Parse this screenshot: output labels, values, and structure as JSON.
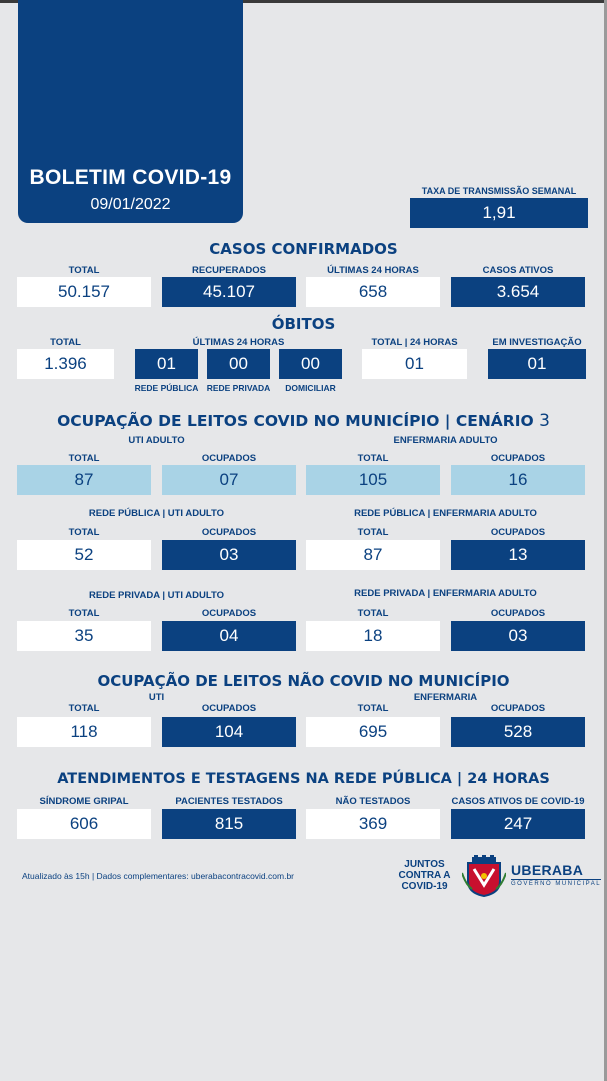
{
  "header": {
    "title": "BOLETIM COVID-19",
    "date": "09/01/2022"
  },
  "taxa": {
    "label": "TAXA DE TRANSMISSÃO SEMANAL",
    "value": "1,91"
  },
  "casos": {
    "title": "CASOS CONFIRMADOS",
    "items": [
      {
        "label": "TOTAL",
        "value": "50.157"
      },
      {
        "label": "RECUPERADOS",
        "value": "45.107"
      },
      {
        "label": "ÚLTIMAS 24 HORAS",
        "value": "658"
      },
      {
        "label": "CASOS ATIVOS",
        "value": "3.654"
      }
    ]
  },
  "obitos": {
    "title": "ÓBITOS",
    "total_label": "TOTAL",
    "total_value": "1.396",
    "ult24_label": "ÚLTIMAS 24 HORAS",
    "ult24": [
      {
        "label": "REDE PÚBLICA",
        "value": "01"
      },
      {
        "label": "REDE PRIVADA",
        "value": "00"
      },
      {
        "label": "DOMICILIAR",
        "value": "00"
      }
    ],
    "total24_label": "TOTAL | 24 HORAS",
    "total24_value": "01",
    "invest_label": "EM INVESTIGAÇÃO",
    "invest_value": "01"
  },
  "leitos_covid": {
    "title": "OCUPAÇÃO DE LEITOS COVID NO MUNICÍPIO | CENÁRIO",
    "cenario": "3",
    "total_label": "TOTAL",
    "ocupados_label": "OCUPADOS",
    "uti_adulto": {
      "label": "UTI ADULTO",
      "total": "87",
      "ocupados": "07"
    },
    "enf_adulto": {
      "label": "ENFERMARIA ADULTO",
      "total": "105",
      "ocupados": "16"
    },
    "pub_uti": {
      "label": "REDE PÚBLICA | UTI ADULTO",
      "total": "52",
      "ocupados": "03"
    },
    "pub_enf": {
      "label": "REDE PÚBLICA | ENFERMARIA ADULTO",
      "total": "87",
      "ocupados": "13"
    },
    "priv_uti": {
      "label": "REDE PRIVADA | UTI ADULTO",
      "total": "35",
      "ocupados": "04"
    },
    "priv_enf": {
      "label": "REDE PRIVADA | ENFERMARIA ADULTO",
      "total": "18",
      "ocupados": "03"
    }
  },
  "leitos_nao_covid": {
    "title": "OCUPAÇÃO DE LEITOS NÃO COVID NO MUNICÍPIO",
    "uti": {
      "label": "UTI",
      "total": "118",
      "ocupados": "104"
    },
    "enf": {
      "label": "ENFERMARIA",
      "total": "695",
      "ocupados": "528"
    }
  },
  "atendimentos": {
    "title": "ATENDIMENTOS E TESTAGENS NA REDE PÚBLICA | 24 HORAS",
    "items": [
      {
        "label": "SÍNDROME GRIPAL",
        "value": "606"
      },
      {
        "label": "PACIENTES TESTADOS",
        "value": "815"
      },
      {
        "label": "NÃO TESTADOS",
        "value": "369"
      },
      {
        "label": "CASOS ATIVOS DE COVID-19",
        "value": "247"
      }
    ]
  },
  "footer": {
    "text": "Atualizado às 15h | Dados complementares: uberabacontracovid.com.br",
    "juntos": "JUNTOS CONTRA A COVID-19",
    "city": "UBERABA",
    "gov": "GOVERNO MUNICIPAL"
  },
  "colors": {
    "primary": "#0b4180",
    "light": "#a9d3e6",
    "background": "#e6e7e9"
  }
}
